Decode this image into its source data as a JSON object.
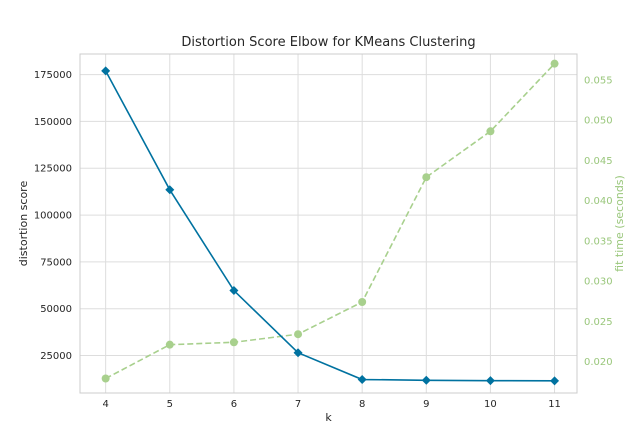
{
  "chart_data": {
    "type": "line",
    "title": "Distortion Score Elbow for KMeans Clustering",
    "xlabel": "k",
    "ylabel": "distortion score",
    "y2label": "fit time (seconds)",
    "x": [
      4,
      5,
      6,
      7,
      8,
      9,
      10,
      11
    ],
    "xticks": [
      "4",
      "5",
      "6",
      "7",
      "8",
      "9",
      "10",
      "11"
    ],
    "ylim": [
      5000,
      186000
    ],
    "yticks": [
      25000,
      50000,
      75000,
      100000,
      125000,
      150000,
      175000
    ],
    "ytick_labels": [
      "25000",
      "50000",
      "75000",
      "100000",
      "125000",
      "150000",
      "175000"
    ],
    "y2lim": [
      0.0161,
      0.0582
    ],
    "y2ticks": [
      0.02,
      0.025,
      0.03,
      0.035,
      0.04,
      0.045,
      0.05,
      0.055
    ],
    "y2tick_labels": [
      "0.020",
      "0.025",
      "0.030",
      "0.035",
      "0.040",
      "0.045",
      "0.050",
      "0.055"
    ],
    "grid": true,
    "series": [
      {
        "axis": "left",
        "color": "#0072a0",
        "marker": "diamond",
        "style": "solid",
        "values": [
          177000,
          113500,
          59700,
          26500,
          12200,
          11800,
          11600,
          11500
        ]
      },
      {
        "axis": "right",
        "color": "#a8d08d",
        "marker": "circle",
        "style": "dashed",
        "values": [
          0.0179,
          0.0221,
          0.0224,
          0.0234,
          0.0274,
          0.0429,
          0.0486,
          0.057
        ]
      }
    ]
  }
}
